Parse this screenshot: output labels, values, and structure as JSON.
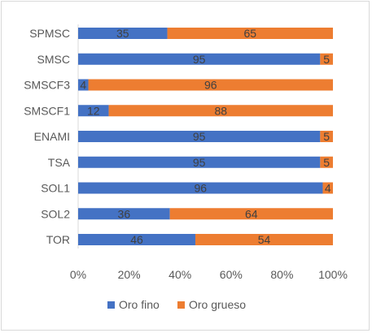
{
  "chart_data": {
    "type": "bar",
    "orientation": "horizontal",
    "stacking": "percent",
    "categories": [
      "SPMSC",
      "SMSC",
      "SMSCF3",
      "SMSCF1",
      "ENAMI",
      "TSA",
      "SOL1",
      "SOL2",
      "TOR"
    ],
    "series": [
      {
        "name": "Oro fino",
        "color": "#4472C4",
        "values": [
          35,
          95,
          4,
          12,
          95,
          95,
          96,
          36,
          46
        ]
      },
      {
        "name": "Oro grueso",
        "color": "#ED7D31",
        "values": [
          65,
          5,
          96,
          88,
          5,
          5,
          4,
          64,
          54
        ]
      }
    ],
    "x_ticks": [
      "0%",
      "20%",
      "40%",
      "60%",
      "80%",
      "100%"
    ],
    "xlim": [
      0,
      100
    ],
    "grid": false,
    "legend_position": "bottom",
    "data_labels": true
  }
}
